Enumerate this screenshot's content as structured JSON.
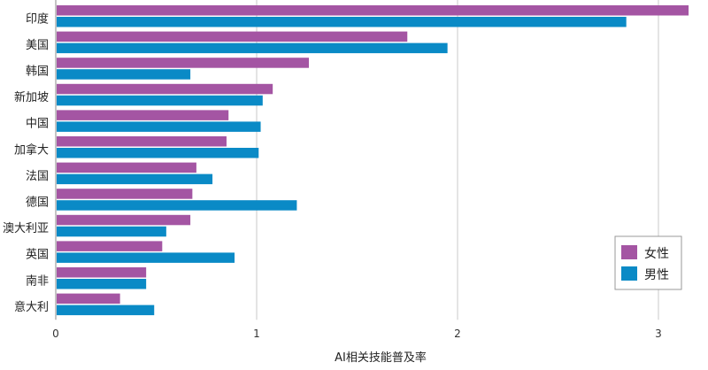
{
  "chart_data": {
    "type": "bar",
    "orientation": "horizontal",
    "title": "",
    "xlabel": "AI相关技能普及率",
    "ylabel": "",
    "xlim": [
      0,
      3.2
    ],
    "xticks": [
      0,
      1,
      2,
      3
    ],
    "grid": true,
    "legend_position": "bottom-right",
    "categories": [
      "印度",
      "美国",
      "韩国",
      "新加坡",
      "中国",
      "加拿大",
      "法国",
      "德国",
      "澳大利亚",
      "英国",
      "南非",
      "意大利"
    ],
    "series": [
      {
        "name": "女性",
        "color": "#a455a3",
        "values": [
          3.15,
          1.75,
          1.26,
          1.08,
          0.86,
          0.85,
          0.7,
          0.68,
          0.67,
          0.53,
          0.45,
          0.32
        ]
      },
      {
        "name": "男性",
        "color": "#0a8ac6",
        "values": [
          2.84,
          1.95,
          0.67,
          1.03,
          1.02,
          1.01,
          0.78,
          1.2,
          0.55,
          0.89,
          0.45,
          0.49
        ]
      }
    ]
  }
}
